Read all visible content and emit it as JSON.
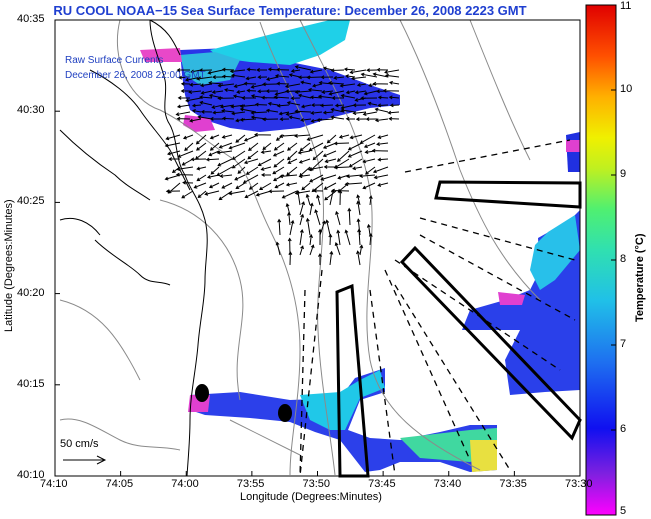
{
  "title": "RU COOL  NOAA−15  Sea Surface Temperature:  December 26, 2008 2223 GMT",
  "annotation": {
    "line1": "Raw Surface Currents",
    "line2": "December 26, 2008 22:00 GMT"
  },
  "scale": {
    "label": "50 cm/s"
  },
  "axes": {
    "xlabel": "Longitude (Degrees:Minutes)",
    "ylabel": "Latitude (Degrees:Minutes)",
    "xticks": [
      "74:10",
      "74:05",
      "74:00",
      "73:55",
      "73:50",
      "73:45",
      "73:40",
      "73:35",
      "73:30"
    ],
    "yticks": [
      "40:35",
      "40:30",
      "40:25",
      "40:20",
      "40:15",
      "40:10"
    ]
  },
  "colorbar": {
    "label": "Temperature (°C)",
    "ticks": [
      "11",
      "10",
      "9",
      "8",
      "7",
      "6",
      "5"
    ],
    "min": 5,
    "max": 11
  },
  "colors": {
    "title": "#1f3fd0",
    "coast": "#000000",
    "isobath": "#8a8a8a"
  }
}
